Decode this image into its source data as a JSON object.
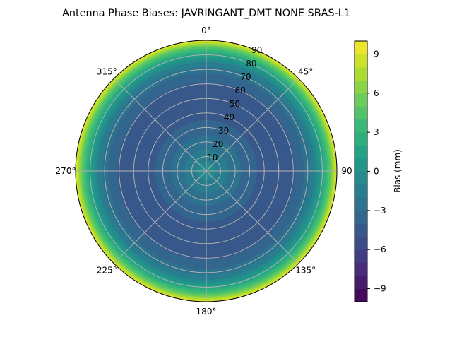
{
  "chart_data": {
    "type": "polar-contour",
    "title": "Antenna Phase Biases: JAVRINGANT_DMT  NONE SBAS-L1",
    "azimuth_direction": "clockwise",
    "azimuth_zero": "top",
    "azimuth_ticks": [
      "0°",
      "45°",
      "90",
      "135°",
      "180°",
      "225°",
      "270°",
      "315°"
    ],
    "zenith_ticks": [
      "10",
      "20",
      "30",
      "40",
      "50",
      "60",
      "70",
      "80",
      "90"
    ],
    "zenith_range": [
      0,
      90
    ],
    "grid": true,
    "profile": {
      "zenith": [
        0,
        5,
        10,
        15,
        20,
        25,
        30,
        35,
        40,
        45,
        50,
        55,
        60,
        65,
        70,
        75,
        78,
        81,
        84,
        86,
        88,
        90
      ],
      "bias": [
        -0.5,
        -0.8,
        -1.4,
        -2.0,
        -2.6,
        -3.1,
        -3.6,
        -4.0,
        -4.3,
        -4.5,
        -4.5,
        -4.4,
        -4.1,
        -3.5,
        -2.5,
        -1.0,
        0.5,
        2.0,
        4.0,
        5.5,
        7.5,
        9.5
      ]
    },
    "colorbar": {
      "label": "Bias (mm)",
      "range": [
        -10,
        10
      ],
      "levels": 20,
      "ticks": [
        "−9",
        "−6",
        "−3",
        "0",
        "3",
        "6",
        "9"
      ],
      "tick_values": [
        -9,
        -6,
        -3,
        0,
        3,
        6,
        9
      ],
      "colormap": "viridis"
    }
  }
}
